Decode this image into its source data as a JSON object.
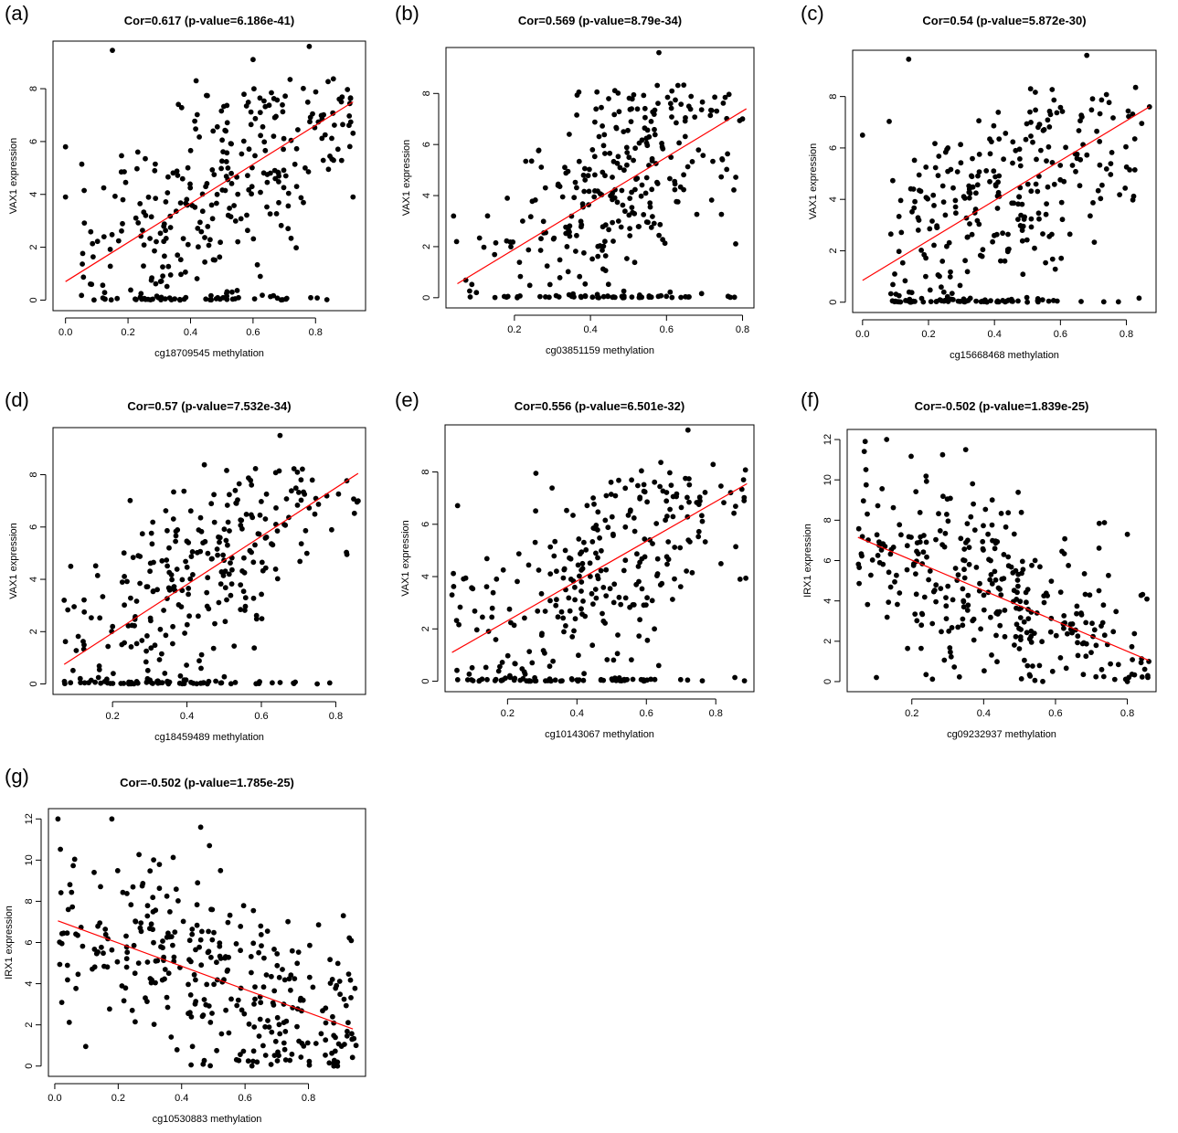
{
  "chart_data": [
    {
      "panel": "(a)",
      "type": "scatter",
      "title": "Cor=0.617 (p-value=6.186e-41)",
      "xlabel": "cg18709545 methylation",
      "ylabel": "VAX1 expression",
      "xlim": [
        -0.04,
        0.96
      ],
      "ylim": [
        -0.4,
        9.8
      ],
      "xticks": [
        0.0,
        0.2,
        0.4,
        0.6,
        0.8
      ],
      "yticks": [
        0,
        2,
        4,
        6,
        8
      ],
      "regression": {
        "x": [
          0.0,
          0.92
        ],
        "y": [
          0.7,
          7.5
        ],
        "color": "#ff0000"
      },
      "seed": 11,
      "n": 330,
      "yspread": 1.9,
      "zerofrac": 0.2,
      "xdist": [
        0.05,
        0.92,
        0.5,
        0.25
      ],
      "extra": [
        [
          0.0,
          5.8
        ],
        [
          0.0,
          3.9
        ],
        [
          0.15,
          9.45
        ],
        [
          0.92,
          3.9
        ],
        [
          0.78,
          9.6
        ],
        [
          0.6,
          9.1
        ]
      ]
    },
    {
      "panel": "(b)",
      "type": "scatter",
      "title": "Cor=0.569 (p-value=8.79e-34)",
      "xlabel": "cg03851159 methylation",
      "ylabel": "VAX1 expression",
      "xlim": [
        0.02,
        0.83
      ],
      "ylim": [
        -0.4,
        9.8
      ],
      "xticks": [
        0.2,
        0.4,
        0.6,
        0.8
      ],
      "yticks": [
        0,
        2,
        4,
        6,
        8
      ],
      "regression": {
        "x": [
          0.05,
          0.81
        ],
        "y": [
          0.55,
          7.4
        ],
        "color": "#ff0000"
      },
      "seed": 23,
      "n": 330,
      "yspread": 2.0,
      "zerofrac": 0.2,
      "xdist": [
        0.04,
        0.8,
        0.48,
        0.16
      ],
      "extra": [
        [
          0.04,
          3.2
        ],
        [
          0.8,
          7.0
        ],
        [
          0.58,
          9.6
        ],
        [
          0.1,
          0.2
        ]
      ]
    },
    {
      "panel": "(c)",
      "type": "scatter",
      "title": "Cor=0.54 (p-value=5.872e-30)",
      "xlabel": "cg15668468 methylation",
      "ylabel": "VAX1 expression",
      "xlim": [
        -0.03,
        0.89
      ],
      "ylim": [
        -0.4,
        9.8
      ],
      "xticks": [
        0.0,
        0.2,
        0.4,
        0.6,
        0.8
      ],
      "yticks": [
        0,
        2,
        4,
        6,
        8
      ],
      "regression": {
        "x": [
          0.0,
          0.87
        ],
        "y": [
          0.85,
          7.6
        ],
        "color": "#ff0000"
      },
      "seed": 37,
      "n": 330,
      "yspread": 2.0,
      "zerofrac": 0.2,
      "xdist": [
        0.08,
        0.86,
        0.4,
        0.2
      ],
      "extra": [
        [
          0.0,
          6.5
        ],
        [
          0.14,
          9.45
        ],
        [
          0.87,
          7.6
        ],
        [
          0.68,
          9.6
        ]
      ]
    },
    {
      "panel": "(d)",
      "type": "scatter",
      "title": "Cor=0.57 (p-value=7.532e-34)",
      "xlabel": "cg18459489 methylation",
      "ylabel": "VAX1 expression",
      "xlim": [
        0.04,
        0.88
      ],
      "ylim": [
        -0.4,
        9.8
      ],
      "xticks": [
        0.2,
        0.4,
        0.6,
        0.8
      ],
      "yticks": [
        0,
        2,
        4,
        6,
        8
      ],
      "regression": {
        "x": [
          0.07,
          0.86
        ],
        "y": [
          0.75,
          8.05
        ],
        "color": "#ff0000"
      },
      "seed": 41,
      "n": 330,
      "yspread": 1.9,
      "zerofrac": 0.2,
      "xdist": [
        0.07,
        0.86,
        0.42,
        0.18
      ],
      "extra": [
        [
          0.07,
          3.2
        ],
        [
          0.86,
          7.0
        ],
        [
          0.65,
          9.5
        ],
        [
          0.75,
          0.0
        ]
      ]
    },
    {
      "panel": "(e)",
      "type": "scatter",
      "title": "Cor=0.556 (p-value=6.501e-32)",
      "xlabel": "cg10143067 methylation",
      "ylabel": "VAX1 expression",
      "xlim": [
        0.02,
        0.91
      ],
      "ylim": [
        -0.4,
        9.8
      ],
      "xticks": [
        0.2,
        0.4,
        0.6,
        0.8
      ],
      "yticks": [
        0,
        2,
        4,
        6,
        8
      ],
      "regression": {
        "x": [
          0.04,
          0.89
        ],
        "y": [
          1.1,
          7.55
        ],
        "color": "#ff0000"
      },
      "seed": 53,
      "n": 330,
      "yspread": 2.0,
      "zerofrac": 0.2,
      "xdist": [
        0.04,
        0.89,
        0.45,
        0.22
      ],
      "extra": [
        [
          0.88,
          7.7
        ],
        [
          0.87,
          3.9
        ],
        [
          0.72,
          9.6
        ],
        [
          0.04,
          3.3
        ]
      ]
    },
    {
      "panel": "(f)",
      "type": "scatter",
      "title": "Cor=-0.502 (p-value=1.839e-25)",
      "xlabel": "cg09232937 methylation",
      "ylabel": "IRX1 expression",
      "xlim": [
        0.02,
        0.88
      ],
      "ylim": [
        -0.5,
        12.5
      ],
      "xticks": [
        0.2,
        0.4,
        0.6,
        0.8
      ],
      "yticks": [
        0,
        2,
        4,
        6,
        8,
        10,
        12
      ],
      "regression": {
        "x": [
          0.05,
          0.86
        ],
        "y": [
          7.15,
          1.05
        ],
        "color": "#ff0000"
      },
      "seed": 67,
      "n": 330,
      "yspread": 2.2,
      "zerofrac": 0.0,
      "xdist": [
        0.05,
        0.86,
        0.4,
        0.2
      ],
      "extra": [
        [
          0.07,
          11.9
        ],
        [
          0.13,
          12.0
        ],
        [
          0.35,
          11.5
        ],
        [
          0.8,
          7.3
        ],
        [
          0.86,
          1.0
        ],
        [
          0.8,
          0.0
        ]
      ]
    },
    {
      "panel": "(g)",
      "type": "scatter",
      "title": "Cor=-0.502 (p-value=1.785e-25)",
      "xlabel": "cg10530883 methylation",
      "ylabel": "IRX1 expression",
      "xlim": [
        -0.02,
        0.98
      ],
      "ylim": [
        -0.5,
        12.5
      ],
      "xticks": [
        0.0,
        0.2,
        0.4,
        0.6,
        0.8
      ],
      "yticks": [
        0,
        2,
        4,
        6,
        8,
        10,
        12
      ],
      "regression": {
        "x": [
          0.01,
          0.94
        ],
        "y": [
          7.05,
          1.8
        ],
        "color": "#ff0000"
      },
      "seed": 79,
      "n": 330,
      "yspread": 2.2,
      "zerofrac": 0.0,
      "xdist": [
        0.01,
        0.95,
        0.5,
        0.27
      ],
      "extra": [
        [
          0.01,
          12.0
        ],
        [
          0.18,
          12.0
        ],
        [
          0.46,
          11.6
        ],
        [
          0.91,
          7.3
        ],
        [
          0.95,
          1.0
        ],
        [
          0.88,
          0.0
        ]
      ]
    }
  ]
}
